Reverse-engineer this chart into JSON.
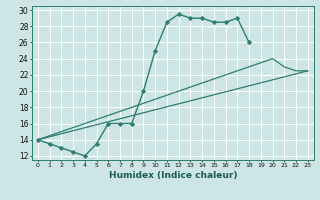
{
  "xlabel": "Humidex (Indice chaleur)",
  "background_color": "#cde5e5",
  "grid_color": "#b0d0d0",
  "line_color": "#2e7d6e",
  "xlim": [
    -0.5,
    23.5
  ],
  "ylim": [
    11.5,
    30.5
  ],
  "xticks": [
    0,
    1,
    2,
    3,
    4,
    5,
    6,
    7,
    8,
    9,
    10,
    11,
    12,
    13,
    14,
    15,
    16,
    17,
    18,
    19,
    20,
    21,
    22,
    23
  ],
  "yticks": [
    12,
    14,
    16,
    18,
    20,
    22,
    24,
    26,
    28,
    30
  ],
  "line1_x": [
    0,
    1,
    2,
    3,
    4,
    5,
    6,
    7,
    8,
    9,
    10,
    11,
    12,
    13,
    14,
    15,
    16,
    17,
    18
  ],
  "line1_y": [
    14,
    13.5,
    13,
    12.5,
    12,
    13.5,
    16,
    16,
    16,
    20,
    25,
    28.5,
    29.5,
    29,
    29,
    28.5,
    28.5,
    29,
    26
  ],
  "line2_x": [
    0,
    23
  ],
  "line2_y": [
    14,
    22.5
  ],
  "line3_x": [
    0,
    20,
    21,
    22,
    23
  ],
  "line3_y": [
    14,
    24,
    23,
    22.5,
    22.5
  ]
}
